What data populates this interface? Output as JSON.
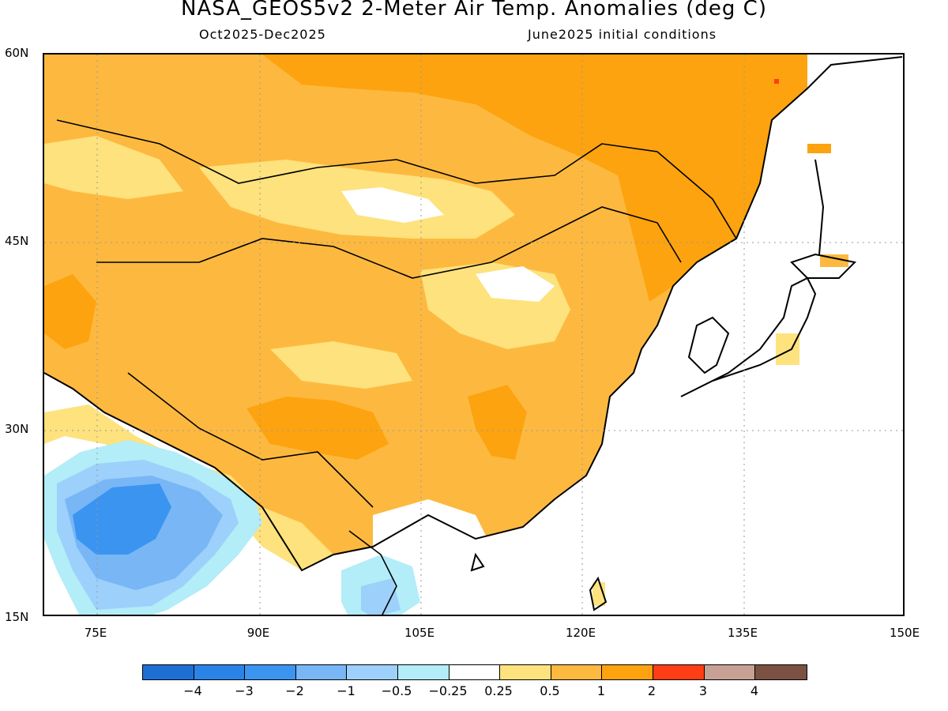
{
  "header": {
    "title": "NASA_GEOS5v2 2-Meter Air Temp. Anomalies (deg C)",
    "period": "Oct2025-Dec2025",
    "init": "June2025 initial conditions"
  },
  "map": {
    "lat_labels": [
      "60N",
      "45N",
      "30N",
      "15N"
    ],
    "lon_labels": [
      "75E",
      "90E",
      "105E",
      "120E",
      "135E",
      "150E"
    ],
    "lat_range": [
      15,
      60
    ],
    "lon_range": [
      70,
      150
    ],
    "colors": {
      "lt_neg4": "#1e6fd4",
      "neg4_neg3": "#2a84e8",
      "neg3_neg2": "#3b94f0",
      "neg2_neg1": "#78b6f6",
      "neg1_neg05": "#9dd0fa",
      "neg05_neg025": "#b2edf8",
      "neutral": "#ffffff",
      "p025_p05": "#fde27e",
      "p05_p1": "#fdb93f",
      "p1_p2": "#fca30f",
      "p2_p3": "#ff3e15",
      "p3_p4": "#c8a195",
      "gt_p4": "#7a5142"
    }
  },
  "colorbar": {
    "colors": [
      "#1e6fd4",
      "#2a84e8",
      "#3b94f0",
      "#78b6f6",
      "#9dd0fa",
      "#b2edf8",
      "#ffffff",
      "#fde27e",
      "#fdb93f",
      "#fca30f",
      "#ff3e15",
      "#c8a195",
      "#7a5142"
    ],
    "labels": [
      "-4",
      "-3",
      "-2",
      "-1",
      "-0.5",
      "-0.25",
      "0.25",
      "0.5",
      "1",
      "2",
      "3",
      "4"
    ]
  }
}
